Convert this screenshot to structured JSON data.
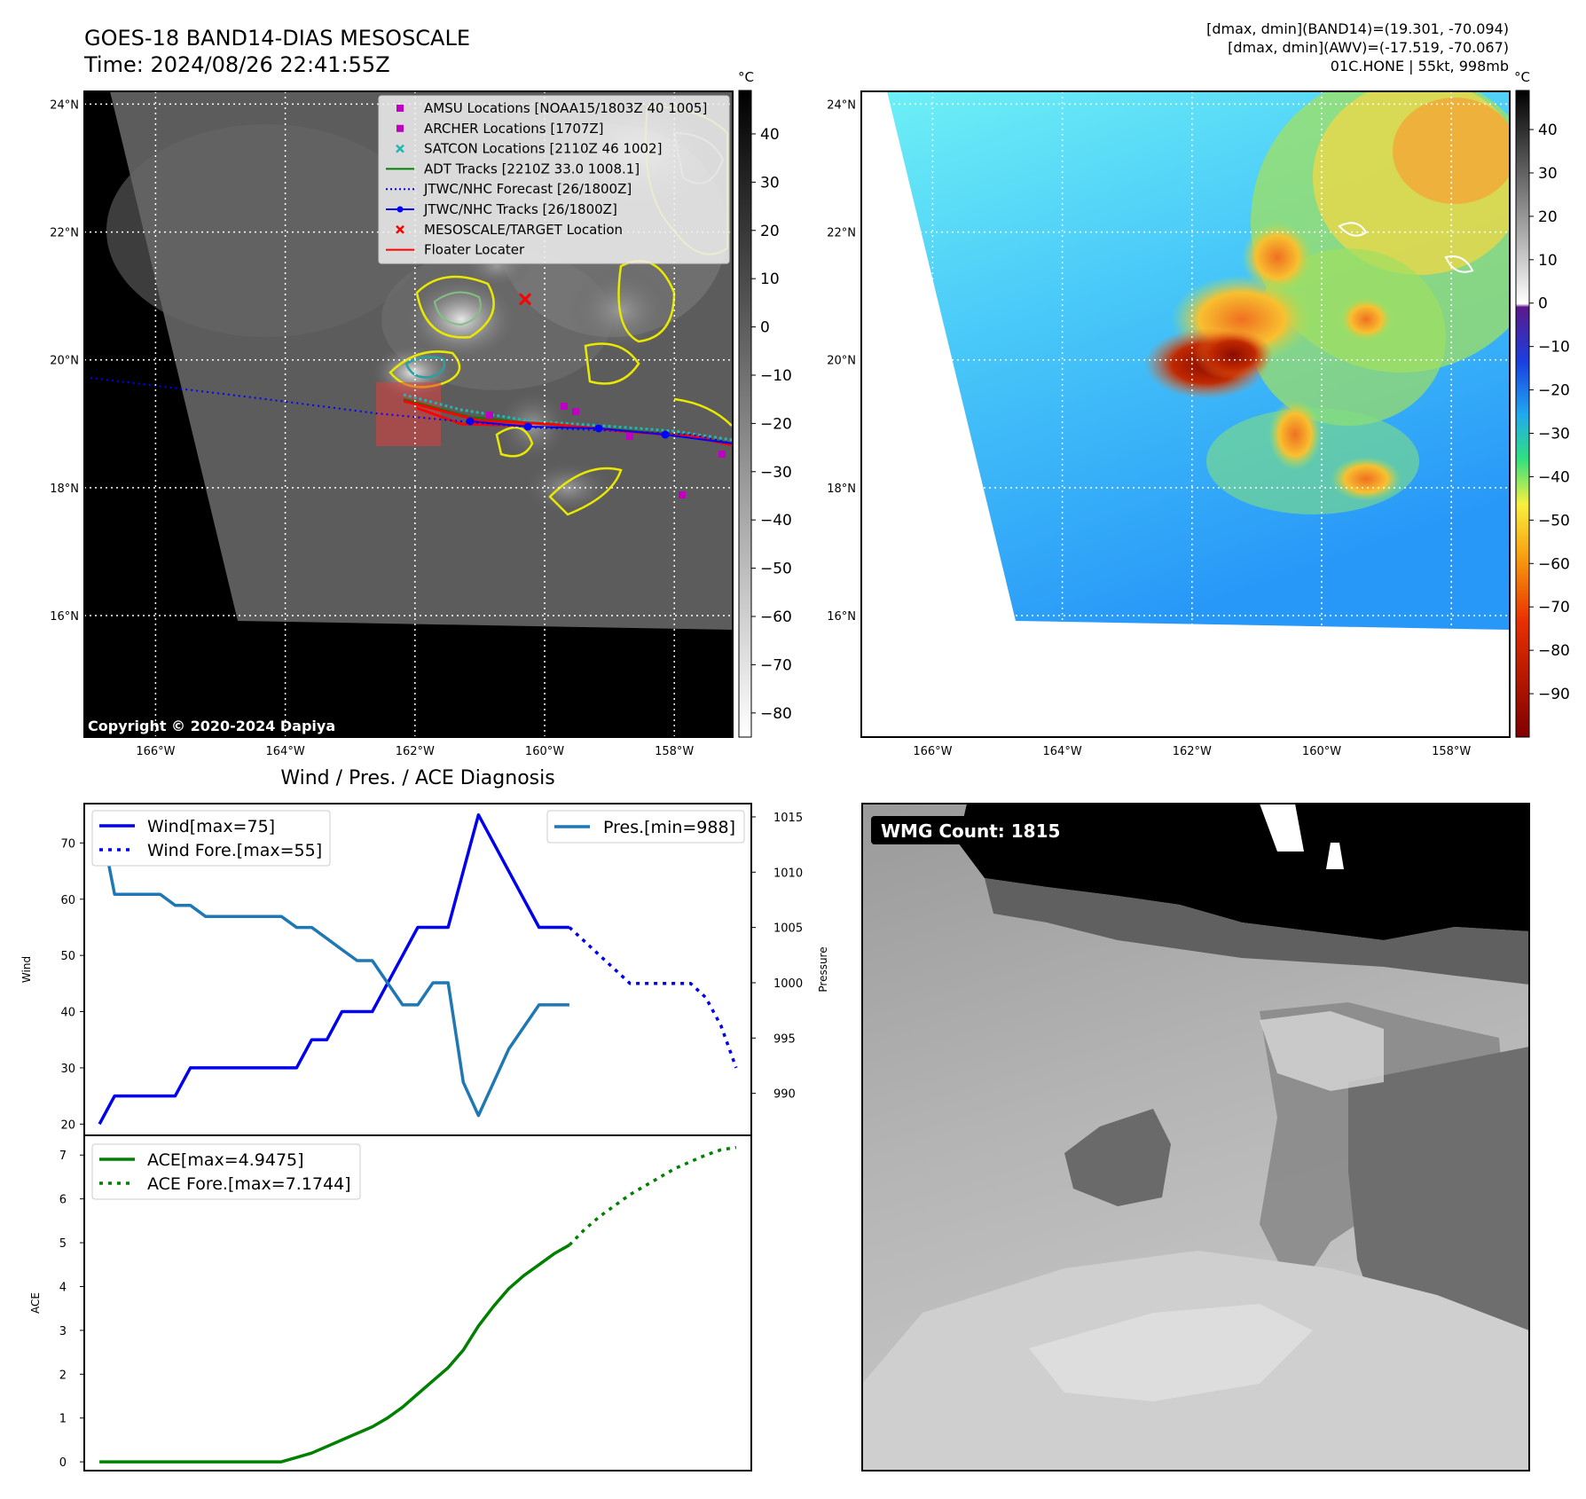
{
  "header": {
    "title_line1": "GOES-18 BAND14-DIAS MESOSCALE",
    "title_line2": "Time: 2024/08/26 22:41:55Z",
    "info_line1": "[dmax, dmin](BAND14)=(19.301, -70.094)",
    "info_line2": "[dmax, dmin](AWV)=(-17.519, -70.067)",
    "info_line3": "01C.HONE | 55kt, 998mb"
  },
  "map_axes": {
    "lat_labels": [
      "24°N",
      "22°N",
      "20°N",
      "18°N",
      "16°N"
    ],
    "lon_labels": [
      "166°W",
      "164°W",
      "162°W",
      "160°W",
      "158°W"
    ],
    "lat_values": [
      24,
      22,
      20,
      18,
      16
    ],
    "lon_values": [
      -166,
      -164,
      -162,
      -160,
      -158
    ],
    "lon_range": [
      -167.1,
      -157.1
    ],
    "lat_range": [
      14.1,
      24.2
    ]
  },
  "ir_map": {
    "copyright": "Copyright © 2020-2024 Dapiya",
    "colorbar_unit": "°C",
    "colorbar_ticks": [
      "40",
      "30",
      "20",
      "10",
      "0",
      "−10",
      "−20",
      "−30",
      "−40",
      "−50",
      "−60",
      "−70",
      "−80"
    ],
    "colorbar_values": [
      40,
      30,
      20,
      10,
      0,
      -10,
      -20,
      -30,
      -40,
      -50,
      -60,
      -70,
      -80
    ],
    "colorbar_range": [
      -85,
      49
    ],
    "legend": [
      {
        "label": "AMSU Locations [NOAA15/1803Z 40 1005]",
        "marker": "square",
        "color": "#c000c0"
      },
      {
        "label": "ARCHER Locations [1707Z]",
        "marker": "square",
        "color": "#c000c0"
      },
      {
        "label": "SATCON Locations [2110Z 46 1002]",
        "marker": "x",
        "color": "#20b8b0"
      },
      {
        "label": "ADT Tracks [2210Z 33.0 1008.1]",
        "marker": "line",
        "color": "#008000"
      },
      {
        "label": "JTWC/NHC Forecast [26/1800Z]",
        "marker": "dotted",
        "color": "#0000ff"
      },
      {
        "label": "JTWC/NHC Tracks [26/1800Z]",
        "marker": "line-dot",
        "color": "#0000ff"
      },
      {
        "label": "MESOSCALE/TARGET Location",
        "marker": "x",
        "color": "#ff0000"
      },
      {
        "label": "Floater Locater",
        "marker": "line",
        "color": "#ff0000"
      }
    ],
    "target_location": {
      "lon": -160.3,
      "lat": 20.95
    }
  },
  "awv_map": {
    "colorbar_unit": "°C",
    "colorbar_ticks": [
      "40",
      "30",
      "20",
      "10",
      "0",
      "−10",
      "−20",
      "−30",
      "−40",
      "−50",
      "−60",
      "−70",
      "−80",
      "−90"
    ],
    "colorbar_values": [
      40,
      30,
      20,
      10,
      0,
      -10,
      -20,
      -30,
      -40,
      -50,
      -60,
      -70,
      -80,
      -90
    ],
    "colorbar_range": [
      -100,
      49
    ]
  },
  "diagnosis": {
    "title": "Wind / Pres. / ACE Diagnosis",
    "wind_ylabel": "Wind",
    "pres_ylabel": "Pressure",
    "ace_ylabel": "ACE",
    "wind_legend": [
      "Wind[max=75]",
      "Wind Fore.[max=55]"
    ],
    "pres_legend": [
      "Pres.[min=988]"
    ],
    "ace_legend": [
      "ACE[max=4.9475]",
      "ACE Fore.[max=7.1744]"
    ],
    "wind_ticks": [
      "70",
      "60",
      "50",
      "40",
      "30",
      "20"
    ],
    "pres_ticks": [
      "1015",
      "1010",
      "1005",
      "1000",
      "995",
      "990"
    ],
    "ace_ticks": [
      "7",
      "6",
      "5",
      "4",
      "3",
      "2",
      "1",
      "0"
    ]
  },
  "wmg": {
    "label": "WMG Count: 1815"
  },
  "chart_data": [
    {
      "type": "line",
      "title": "Wind / Pres. / ACE Diagnosis",
      "ylabel": "Wind",
      "ylim": [
        18,
        77
      ],
      "xlim": [
        -1,
        43
      ],
      "series": [
        {
          "name": "Wind[max=75]",
          "color": "#0000ee",
          "style": "solid",
          "x": [
            0,
            1,
            2,
            3,
            4,
            5,
            6,
            7,
            8,
            9,
            10,
            11,
            12,
            13,
            14,
            15,
            16,
            17,
            18,
            19,
            20,
            21,
            22,
            23,
            24,
            25,
            26,
            27,
            28,
            29,
            30,
            31
          ],
          "values": [
            20,
            25,
            25,
            25,
            25,
            25,
            30,
            30,
            30,
            30,
            30,
            30,
            30,
            30,
            35,
            35,
            40,
            40,
            40,
            45,
            50,
            55,
            55,
            55,
            65,
            75,
            70,
            65,
            60,
            55,
            55,
            55
          ]
        },
        {
          "name": "Wind Fore.[max=55]",
          "color": "#0000ee",
          "style": "dotted",
          "x": [
            31,
            32,
            33,
            34,
            35,
            36,
            37,
            38,
            39,
            40,
            41,
            42
          ],
          "values": [
            55,
            52.5,
            50,
            47.5,
            45,
            45,
            45,
            45,
            45,
            42.5,
            37.5,
            30
          ]
        }
      ]
    },
    {
      "type": "line",
      "ylabel": "Pressure",
      "ylim": [
        986.2,
        1016.2
      ],
      "xlim": [
        -1,
        43
      ],
      "series": [
        {
          "name": "Pres.[min=988]",
          "color": "#1f77b4",
          "style": "solid",
          "x": [
            0,
            1,
            2,
            3,
            4,
            5,
            6,
            7,
            8,
            9,
            10,
            11,
            12,
            13,
            14,
            15,
            16,
            17,
            18,
            19,
            20,
            21,
            22,
            23,
            24,
            25,
            26,
            27,
            28,
            29,
            30,
            31
          ],
          "values": [
            1015,
            1008,
            1008,
            1008,
            1008,
            1007,
            1007,
            1006,
            1006,
            1006,
            1006,
            1006,
            1006,
            1005,
            1005,
            1004,
            1003,
            1002,
            1002,
            1000,
            998,
            998,
            1000,
            1000,
            991,
            988,
            991,
            994,
            996,
            998,
            998,
            998
          ]
        }
      ]
    },
    {
      "type": "line",
      "ylabel": "ACE",
      "ylim": [
        -0.2,
        7.45
      ],
      "xlim": [
        -1,
        43
      ],
      "series": [
        {
          "name": "ACE[max=4.9475]",
          "color": "#008000",
          "style": "solid",
          "x": [
            0,
            1,
            2,
            3,
            4,
            5,
            6,
            7,
            8,
            9,
            10,
            11,
            12,
            13,
            14,
            15,
            16,
            17,
            18,
            19,
            20,
            21,
            22,
            23,
            24,
            25,
            26,
            27,
            28,
            29,
            30,
            31
          ],
          "values": [
            0,
            0,
            0,
            0,
            0,
            0,
            0,
            0,
            0,
            0,
            0,
            0,
            0,
            0.1,
            0.2,
            0.35,
            0.5,
            0.65,
            0.8,
            1.0,
            1.25,
            1.55,
            1.85,
            2.15,
            2.55,
            3.1,
            3.55,
            3.95,
            4.25,
            4.5,
            4.75,
            4.9475
          ]
        },
        {
          "name": "ACE Fore.[max=7.1744]",
          "color": "#008000",
          "style": "dotted",
          "x": [
            31,
            32,
            33,
            34,
            35,
            36,
            37,
            38,
            39,
            40,
            41,
            42
          ],
          "values": [
            4.9475,
            5.3,
            5.6,
            5.85,
            6.1,
            6.3,
            6.5,
            6.7,
            6.85,
            7.0,
            7.12,
            7.1744
          ]
        }
      ]
    }
  ]
}
